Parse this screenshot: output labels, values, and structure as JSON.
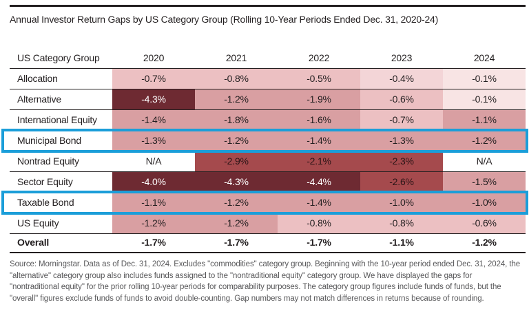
{
  "title": "Annual Investor Return Gaps by US Category Group (Rolling 10-Year Periods Ended Dec. 31, 2020-24)",
  "colors": {
    "text": "#231f20",
    "highlight_border": "#1b9ed9",
    "dark_cell_text": "#ffffff",
    "brick_cell_text": "#2b1517",
    "tones": {
      "vlight": "#f8e4e4",
      "light": "#f3d5d7",
      "midlight": "#ecc0c2",
      "mid": "#d99fa2",
      "brick": "#a54a4d",
      "dark": "#6e2a32",
      "na": "#ffffff",
      "none": "#ffffff"
    }
  },
  "table": {
    "header": {
      "label_col": "US Category Group",
      "year_cols": [
        "2020",
        "2021",
        "2022",
        "2023",
        "2024"
      ]
    },
    "rows": [
      {
        "label": "Allocation",
        "highlighted": false,
        "is_total": false,
        "cells": [
          {
            "v": "-0.7%",
            "tone": "midlight"
          },
          {
            "v": "-0.8%",
            "tone": "midlight"
          },
          {
            "v": "-0.5%",
            "tone": "midlight"
          },
          {
            "v": "-0.4%",
            "tone": "light"
          },
          {
            "v": "-0.1%",
            "tone": "vlight"
          }
        ]
      },
      {
        "label": "Alternative",
        "highlighted": false,
        "is_total": false,
        "cells": [
          {
            "v": "-4.3%",
            "tone": "dark"
          },
          {
            "v": "-1.2%",
            "tone": "mid"
          },
          {
            "v": "-1.9%",
            "tone": "mid"
          },
          {
            "v": "-0.6%",
            "tone": "midlight"
          },
          {
            "v": "-0.1%",
            "tone": "vlight"
          }
        ]
      },
      {
        "label": "International Equity",
        "highlighted": false,
        "is_total": false,
        "cells": [
          {
            "v": "-1.4%",
            "tone": "mid"
          },
          {
            "v": "-1.8%",
            "tone": "mid"
          },
          {
            "v": "-1.6%",
            "tone": "mid"
          },
          {
            "v": "-0.7%",
            "tone": "midlight"
          },
          {
            "v": "-1.1%",
            "tone": "mid"
          }
        ]
      },
      {
        "label": "Municipal Bond",
        "highlighted": true,
        "is_total": false,
        "cells": [
          {
            "v": "-1.3%",
            "tone": "mid"
          },
          {
            "v": "-1.2%",
            "tone": "mid"
          },
          {
            "v": "-1.4%",
            "tone": "mid"
          },
          {
            "v": "-1.3%",
            "tone": "mid"
          },
          {
            "v": "-1.2%",
            "tone": "mid"
          }
        ]
      },
      {
        "label": "Nontrad Equity",
        "highlighted": false,
        "is_total": false,
        "cells": [
          {
            "v": "N/A",
            "tone": "na"
          },
          {
            "v": "-2.9%",
            "tone": "brick"
          },
          {
            "v": "-2.1%",
            "tone": "brick"
          },
          {
            "v": "-2.3%",
            "tone": "brick"
          },
          {
            "v": "N/A",
            "tone": "na"
          }
        ]
      },
      {
        "label": "Sector Equity",
        "highlighted": false,
        "is_total": false,
        "cells": [
          {
            "v": "-4.0%",
            "tone": "dark"
          },
          {
            "v": "-4.3%",
            "tone": "dark"
          },
          {
            "v": "-4.4%",
            "tone": "dark"
          },
          {
            "v": "-2.6%",
            "tone": "brick"
          },
          {
            "v": "-1.5%",
            "tone": "mid"
          }
        ]
      },
      {
        "label": "Taxable Bond",
        "highlighted": true,
        "is_total": false,
        "cells": [
          {
            "v": "-1.1%",
            "tone": "mid"
          },
          {
            "v": "-1.2%",
            "tone": "mid"
          },
          {
            "v": "-1.4%",
            "tone": "mid"
          },
          {
            "v": "-1.0%",
            "tone": "mid"
          },
          {
            "v": "-1.0%",
            "tone": "mid"
          }
        ]
      },
      {
        "label": "US Equity",
        "highlighted": false,
        "is_total": false,
        "cells": [
          {
            "v": "-1.2%",
            "tone": "mid"
          },
          {
            "v": "-1.2%",
            "tone": "mid"
          },
          {
            "v": "-0.8%",
            "tone": "midlight"
          },
          {
            "v": "-0.8%",
            "tone": "midlight"
          },
          {
            "v": "-0.6%",
            "tone": "midlight"
          }
        ]
      },
      {
        "label": "Overall",
        "highlighted": false,
        "is_total": true,
        "cells": [
          {
            "v": "-1.7%",
            "tone": "none"
          },
          {
            "v": "-1.7%",
            "tone": "none"
          },
          {
            "v": "-1.7%",
            "tone": "none"
          },
          {
            "v": "-1.1%",
            "tone": "none"
          },
          {
            "v": "-1.2%",
            "tone": "none"
          }
        ]
      }
    ]
  },
  "footnote": "Source: Morningstar. Data as of Dec. 31, 2024. Excludes \"commodities\" category group. Beginning with the 10-year period ended Dec. 31, 2024, the \"alternative\" category group also includes funds assigned to the \"nontraditional equity\" category group. We have displayed the gaps for \"nontraditional equity\" for the prior rolling 10-year periods for comparability purposes. The category group figures include funds of funds, but the \"overall\" figures exclude funds of funds to avoid double-counting. Gap numbers may not match differences in returns because of rounding.",
  "chart_data": {
    "type": "table",
    "title": "Annual Investor Return Gaps by US Category Group (Rolling 10-Year Periods Ended Dec. 31, 2020-24)",
    "columns": [
      "US Category Group",
      "2020",
      "2021",
      "2022",
      "2023",
      "2024"
    ],
    "rows": [
      [
        "Allocation",
        "-0.7%",
        "-0.8%",
        "-0.5%",
        "-0.4%",
        "-0.1%"
      ],
      [
        "Alternative",
        "-4.3%",
        "-1.2%",
        "-1.9%",
        "-0.6%",
        "-0.1%"
      ],
      [
        "International Equity",
        "-1.4%",
        "-1.8%",
        "-1.6%",
        "-0.7%",
        "-1.1%"
      ],
      [
        "Municipal Bond",
        "-1.3%",
        "-1.2%",
        "-1.4%",
        "-1.3%",
        "-1.2%"
      ],
      [
        "Nontrad Equity",
        "N/A",
        "-2.9%",
        "-2.1%",
        "-2.3%",
        "N/A"
      ],
      [
        "Sector Equity",
        "-4.0%",
        "-4.3%",
        "-4.4%",
        "-2.6%",
        "-1.5%"
      ],
      [
        "Taxable Bond",
        "-1.1%",
        "-1.2%",
        "-1.4%",
        "-1.0%",
        "-1.0%"
      ],
      [
        "US Equity",
        "-1.2%",
        "-1.2%",
        "-0.8%",
        "-0.8%",
        "-0.6%"
      ],
      [
        "Overall",
        "-1.7%",
        "-1.7%",
        "-1.7%",
        "-1.1%",
        "-1.2%"
      ]
    ],
    "highlighted_rows": [
      "Municipal Bond",
      "Taxable Bond"
    ],
    "notes": "Cell shading encodes gap magnitude: light pink (near 0) to dark maroon (-4% and below); N/A cells unshaded"
  }
}
